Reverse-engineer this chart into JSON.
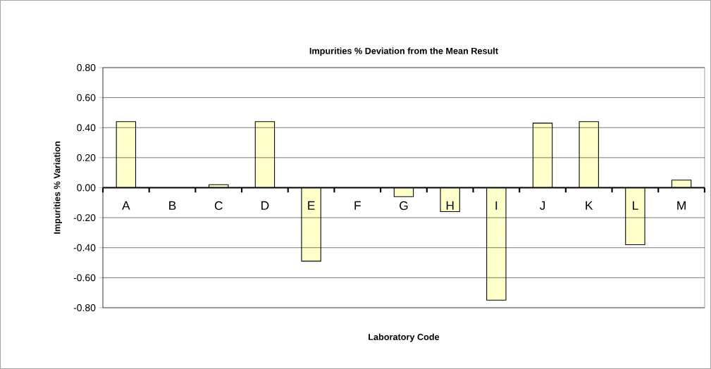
{
  "chart_data": {
    "type": "bar",
    "title": "Impurities % Deviation from the Mean Result",
    "xlabel": "Laboratory Code",
    "ylabel": "Impurities % Variation",
    "categories": [
      "A",
      "B",
      "C",
      "D",
      "E",
      "F",
      "G",
      "H",
      "I",
      "J",
      "K",
      "L",
      "M"
    ],
    "values": [
      0.44,
      null,
      0.02,
      0.44,
      -0.49,
      null,
      -0.06,
      -0.16,
      -0.75,
      0.43,
      0.44,
      -0.38,
      0.05
    ],
    "color": "#ffffcc",
    "ylim": [
      -0.8,
      0.8
    ],
    "yticks": [
      {
        "value": -0.8,
        "label": "-0.80"
      },
      {
        "value": -0.6,
        "label": "-0.60"
      },
      {
        "value": -0.4,
        "label": "-0.40"
      },
      {
        "value": -0.2,
        "label": "-0.20"
      },
      {
        "value": 0,
        "label": "0.00"
      },
      {
        "value": 0.2,
        "label": "0.20"
      },
      {
        "value": 0.4,
        "label": "0.40"
      },
      {
        "value": 0.6,
        "label": "0.60"
      },
      {
        "value": 0.8,
        "label": "0.80"
      }
    ],
    "grid": "y"
  }
}
